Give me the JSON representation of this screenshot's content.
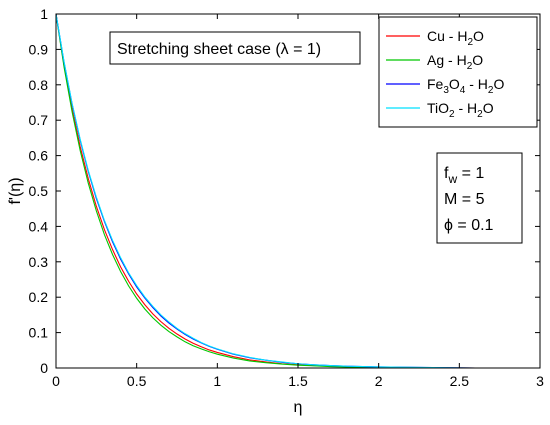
{
  "chart_data": {
    "type": "line",
    "title": "",
    "xlabel": "η",
    "ylabel": "f'(η)",
    "xlim": [
      0,
      3
    ],
    "ylim": [
      0,
      1
    ],
    "xticks": [
      0,
      0.5,
      1,
      1.5,
      2,
      2.5,
      3
    ],
    "xtick_labels": [
      "0",
      "0.5",
      "1",
      "1.5",
      "2",
      "2.5",
      "3"
    ],
    "yticks": [
      0,
      0.1,
      0.2,
      0.3,
      0.4,
      0.5,
      0.6,
      0.7,
      0.8,
      0.9,
      1
    ],
    "ytick_labels": [
      "0",
      "0.1",
      "0.2",
      "0.3",
      "0.4",
      "0.5",
      "0.6",
      "0.7",
      "0.8",
      "0.9",
      "1"
    ],
    "grid": false,
    "legend_position": "top-right",
    "annotation_title": "Stretching sheet case (λ = 1)",
    "parameters": [
      {
        "base": "f",
        "sub": "w",
        "rest": " = 1"
      },
      {
        "base": "M = 5",
        "sub": "",
        "rest": ""
      },
      {
        "base": "ϕ = 0.1",
        "sub": "",
        "rest": ""
      }
    ],
    "series": [
      {
        "name": "Cu - H2O",
        "label_parts": [
          {
            "t": "Cu - H",
            "sub": false
          },
          {
            "t": "2",
            "sub": true
          },
          {
            "t": "O",
            "sub": false
          }
        ],
        "color": "#ff0000",
        "x": [
          0,
          0.05,
          0.1,
          0.15,
          0.2,
          0.25,
          0.3,
          0.35,
          0.4,
          0.45,
          0.5,
          0.55,
          0.6,
          0.65,
          0.7,
          0.75,
          0.8,
          0.85,
          0.9,
          0.95,
          1.0,
          1.1,
          1.2,
          1.3,
          1.4,
          1.5,
          1.6,
          1.7,
          1.8,
          1.9,
          2.0,
          2.2,
          2.4,
          2.6,
          2.75
        ],
        "y": [
          1.0,
          0.855,
          0.731,
          0.625,
          0.535,
          0.457,
          0.391,
          0.335,
          0.286,
          0.245,
          0.209,
          0.179,
          0.153,
          0.131,
          0.112,
          0.096,
          0.082,
          0.07,
          0.06,
          0.051,
          0.044,
          0.032,
          0.023,
          0.017,
          0.012,
          0.009,
          0.007,
          0.005,
          0.004,
          0.003,
          0.002,
          0.001,
          0.001,
          0.0,
          0.0
        ]
      },
      {
        "name": "Ag - H2O",
        "label_parts": [
          {
            "t": "Ag - H",
            "sub": false
          },
          {
            "t": "2",
            "sub": true
          },
          {
            "t": "O",
            "sub": false
          }
        ],
        "color": "#00c800",
        "x": [
          0,
          0.05,
          0.1,
          0.15,
          0.2,
          0.25,
          0.3,
          0.35,
          0.4,
          0.45,
          0.5,
          0.55,
          0.6,
          0.65,
          0.7,
          0.75,
          0.8,
          0.85,
          0.9,
          0.95,
          1.0,
          1.1,
          1.2,
          1.3,
          1.4,
          1.5,
          1.6,
          1.7,
          1.8,
          1.9,
          2.0,
          2.2,
          2.4,
          2.6,
          2.75
        ],
        "y": [
          1.0,
          0.85,
          0.723,
          0.614,
          0.522,
          0.444,
          0.377,
          0.321,
          0.273,
          0.232,
          0.197,
          0.167,
          0.142,
          0.121,
          0.103,
          0.088,
          0.074,
          0.063,
          0.054,
          0.046,
          0.039,
          0.028,
          0.02,
          0.015,
          0.011,
          0.008,
          0.006,
          0.004,
          0.003,
          0.002,
          0.002,
          0.001,
          0.0,
          0.0,
          0.0
        ]
      },
      {
        "name": "Fe3O4 - H2O",
        "label_parts": [
          {
            "t": "Fe",
            "sub": false
          },
          {
            "t": "3",
            "sub": true
          },
          {
            "t": "O",
            "sub": false
          },
          {
            "t": "4",
            "sub": true
          },
          {
            "t": " - H",
            "sub": false
          },
          {
            "t": "2",
            "sub": true
          },
          {
            "t": "O",
            "sub": false
          }
        ],
        "color": "#0000ff",
        "x": [
          0,
          0.05,
          0.1,
          0.15,
          0.2,
          0.25,
          0.3,
          0.35,
          0.4,
          0.45,
          0.5,
          0.55,
          0.6,
          0.65,
          0.7,
          0.75,
          0.8,
          0.85,
          0.9,
          0.95,
          1.0,
          1.1,
          1.2,
          1.3,
          1.4,
          1.5,
          1.6,
          1.7,
          1.8,
          1.9,
          2.0,
          2.2,
          2.4,
          2.6,
          2.75
        ],
        "y": [
          1.0,
          0.863,
          0.745,
          0.643,
          0.555,
          0.479,
          0.414,
          0.357,
          0.308,
          0.266,
          0.229,
          0.198,
          0.171,
          0.147,
          0.127,
          0.11,
          0.095,
          0.082,
          0.071,
          0.061,
          0.053,
          0.039,
          0.029,
          0.022,
          0.016,
          0.012,
          0.009,
          0.007,
          0.005,
          0.004,
          0.003,
          0.002,
          0.001,
          0.0,
          0.0
        ]
      },
      {
        "name": "TiO2 - H2O",
        "label_parts": [
          {
            "t": "TiO",
            "sub": false
          },
          {
            "t": "2",
            "sub": true
          },
          {
            "t": " - H",
            "sub": false
          },
          {
            "t": "2",
            "sub": true
          },
          {
            "t": "O",
            "sub": false
          }
        ],
        "color": "#00e0ff",
        "x": [
          0,
          0.05,
          0.1,
          0.15,
          0.2,
          0.25,
          0.3,
          0.35,
          0.4,
          0.45,
          0.5,
          0.55,
          0.6,
          0.65,
          0.7,
          0.75,
          0.8,
          0.85,
          0.9,
          0.95,
          1.0,
          1.1,
          1.2,
          1.3,
          1.4,
          1.5,
          1.6,
          1.7,
          1.8,
          1.9,
          2.0,
          2.2,
          2.4,
          2.6,
          2.75
        ],
        "y": [
          1.0,
          0.865,
          0.747,
          0.646,
          0.558,
          0.483,
          0.417,
          0.361,
          0.312,
          0.269,
          0.233,
          0.201,
          0.174,
          0.15,
          0.13,
          0.112,
          0.097,
          0.084,
          0.072,
          0.062,
          0.054,
          0.04,
          0.03,
          0.022,
          0.017,
          0.012,
          0.009,
          0.007,
          0.005,
          0.004,
          0.003,
          0.002,
          0.001,
          0.0,
          0.0
        ]
      }
    ]
  }
}
